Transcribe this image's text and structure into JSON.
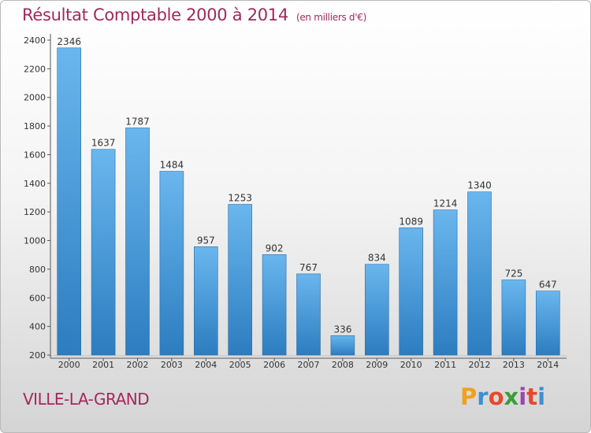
{
  "header": {
    "title": "Résultat Comptable 2000 à 2014",
    "unit_note": "(en milliers d'€)"
  },
  "footer": {
    "city": "VILLE-LA-GRAND",
    "logo": {
      "letters": [
        "P",
        "r",
        "o",
        "x",
        "i",
        "t",
        "i"
      ],
      "colors": [
        "#f0a020",
        "#3d8fd1",
        "#e8482b",
        "#3a9e3a",
        "#9b46b0",
        "#e8482b",
        "#3d8fd1"
      ]
    }
  },
  "colors": {
    "title": "#a3285c",
    "bar_top": "#6ab6ee",
    "bar_bottom": "#2c7dc0"
  },
  "chart_data": {
    "type": "bar",
    "categories": [
      "2000",
      "2001",
      "2002",
      "2003",
      "2004",
      "2005",
      "2006",
      "2007",
      "2008",
      "2009",
      "2010",
      "2011",
      "2012",
      "2013",
      "2014"
    ],
    "values": [
      2346,
      1637,
      1787,
      1484,
      957,
      1253,
      902,
      767,
      336,
      834,
      1089,
      1214,
      1340,
      725,
      647
    ],
    "title": "Résultat Comptable 2000 à 2014",
    "xlabel": "",
    "ylabel": "",
    "ylim": [
      200,
      2400
    ],
    "yticks": [
      200,
      400,
      600,
      800,
      1000,
      1200,
      1400,
      1600,
      1800,
      2000,
      2200,
      2400
    ],
    "grid": false,
    "data_labels": true
  }
}
